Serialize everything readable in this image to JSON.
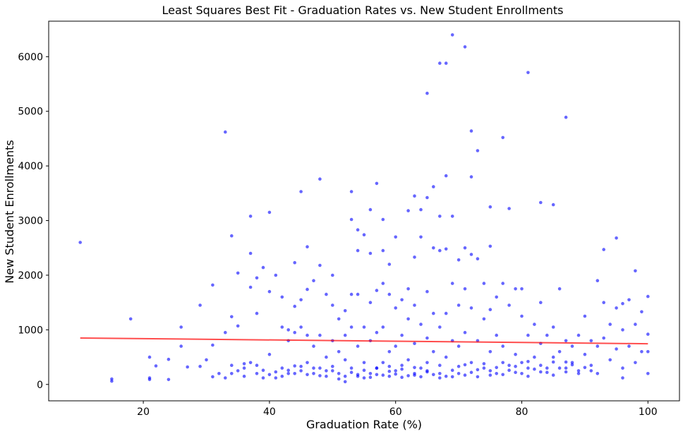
{
  "chart_data": {
    "type": "scatter",
    "title": "Least Squares Best Fit - Graduation Rates vs. New Student Enrollments",
    "xlabel": "Graduation Rate (%)",
    "ylabel": "New Student Enrollments",
    "xlim": [
      5,
      105
    ],
    "ylim": [
      -300,
      6650
    ],
    "xticks": [
      20,
      40,
      60,
      80,
      100
    ],
    "yticks": [
      0,
      1000,
      2000,
      3000,
      4000,
      5000,
      6000
    ],
    "grid": false,
    "legend": "none",
    "point_color": "#0000ff",
    "line_color": "#ff0000",
    "fit_line": {
      "x": [
        10,
        100
      ],
      "y": [
        850,
        745
      ]
    },
    "points": [
      [
        10,
        2600
      ],
      [
        15,
        100
      ],
      [
        15,
        60
      ],
      [
        18,
        1200
      ],
      [
        21,
        500
      ],
      [
        21,
        120
      ],
      [
        21,
        90
      ],
      [
        22,
        340
      ],
      [
        24,
        460
      ],
      [
        24,
        90
      ],
      [
        26,
        1050
      ],
      [
        26,
        700
      ],
      [
        27,
        320
      ],
      [
        29,
        1450
      ],
      [
        29,
        330
      ],
      [
        30,
        450
      ],
      [
        31,
        1820
      ],
      [
        31,
        720
      ],
      [
        31,
        140
      ],
      [
        32,
        200
      ],
      [
        33,
        4620
      ],
      [
        33,
        950
      ],
      [
        33,
        120
      ],
      [
        34,
        2720
      ],
      [
        34,
        1240
      ],
      [
        34,
        350
      ],
      [
        34,
        200
      ],
      [
        35,
        2040
      ],
      [
        35,
        1070
      ],
      [
        35,
        250
      ],
      [
        36,
        300
      ],
      [
        36,
        150
      ],
      [
        37,
        3080
      ],
      [
        37,
        2400
      ],
      [
        37,
        1780
      ],
      [
        37,
        400
      ],
      [
        38,
        1950
      ],
      [
        38,
        1300
      ],
      [
        38,
        350
      ],
      [
        38,
        200
      ],
      [
        39,
        2140
      ],
      [
        39,
        260
      ],
      [
        40,
        3150
      ],
      [
        40,
        1700
      ],
      [
        40,
        550
      ],
      [
        40,
        180
      ],
      [
        41,
        2000
      ],
      [
        41,
        120
      ],
      [
        42,
        1600
      ],
      [
        42,
        1050
      ],
      [
        42,
        300
      ],
      [
        43,
        1000
      ],
      [
        43,
        800
      ],
      [
        43,
        200
      ],
      [
        44,
        2230
      ],
      [
        44,
        1430
      ],
      [
        44,
        950
      ],
      [
        44,
        340
      ],
      [
        45,
        3530
      ],
      [
        45,
        1550
      ],
      [
        45,
        1050
      ],
      [
        45,
        250
      ],
      [
        46,
        2520
      ],
      [
        46,
        1740
      ],
      [
        46,
        900
      ],
      [
        46,
        400
      ],
      [
        47,
        1900
      ],
      [
        47,
        700
      ],
      [
        47,
        200
      ],
      [
        48,
        3760
      ],
      [
        48,
        2180
      ],
      [
        48,
        900
      ],
      [
        48,
        300
      ],
      [
        49,
        1650
      ],
      [
        49,
        500
      ],
      [
        49,
        150
      ],
      [
        50,
        2000
      ],
      [
        50,
        1450
      ],
      [
        50,
        800
      ],
      [
        50,
        250
      ],
      [
        51,
        1200
      ],
      [
        51,
        600
      ],
      [
        51,
        100
      ],
      [
        52,
        1350
      ],
      [
        52,
        900
      ],
      [
        52,
        450
      ],
      [
        52,
        50
      ],
      [
        53,
        3530
      ],
      [
        53,
        3020
      ],
      [
        53,
        1650
      ],
      [
        53,
        1050
      ],
      [
        53,
        300
      ],
      [
        54,
        2830
      ],
      [
        54,
        2450
      ],
      [
        54,
        1650
      ],
      [
        54,
        700
      ],
      [
        54,
        150
      ],
      [
        55,
        2740
      ],
      [
        55,
        1050
      ],
      [
        55,
        400
      ],
      [
        56,
        3200
      ],
      [
        56,
        2400
      ],
      [
        56,
        1500
      ],
      [
        56,
        800
      ],
      [
        56,
        200
      ],
      [
        57,
        3680
      ],
      [
        57,
        1720
      ],
      [
        57,
        950
      ],
      [
        57,
        300
      ],
      [
        58,
        3020
      ],
      [
        58,
        2450
      ],
      [
        58,
        1850
      ],
      [
        58,
        1050
      ],
      [
        58,
        400
      ],
      [
        59,
        2200
      ],
      [
        59,
        1650
      ],
      [
        59,
        600
      ],
      [
        59,
        150
      ],
      [
        60,
        2700
      ],
      [
        60,
        1400
      ],
      [
        60,
        700
      ],
      [
        60,
        250
      ],
      [
        61,
        1550
      ],
      [
        61,
        900
      ],
      [
        61,
        350
      ],
      [
        62,
        3180
      ],
      [
        62,
        1750
      ],
      [
        62,
        1200
      ],
      [
        62,
        450
      ],
      [
        63,
        3450
      ],
      [
        63,
        2330
      ],
      [
        63,
        1450
      ],
      [
        63,
        750
      ],
      [
        63,
        200
      ],
      [
        64,
        3200
      ],
      [
        64,
        2700
      ],
      [
        64,
        1100
      ],
      [
        64,
        300
      ],
      [
        65,
        5330
      ],
      [
        65,
        3420
      ],
      [
        65,
        1700
      ],
      [
        65,
        850
      ],
      [
        65,
        250
      ],
      [
        66,
        3620
      ],
      [
        66,
        2500
      ],
      [
        66,
        1300
      ],
      [
        66,
        600
      ],
      [
        67,
        5880
      ],
      [
        67,
        3080
      ],
      [
        67,
        2450
      ],
      [
        67,
        1050
      ],
      [
        67,
        200
      ],
      [
        68,
        5880
      ],
      [
        68,
        3820
      ],
      [
        68,
        2480
      ],
      [
        68,
        1300
      ],
      [
        68,
        500
      ],
      [
        69,
        6400
      ],
      [
        69,
        3080
      ],
      [
        69,
        1850
      ],
      [
        69,
        800
      ],
      [
        70,
        2280
      ],
      [
        70,
        1450
      ],
      [
        70,
        700
      ],
      [
        70,
        200
      ],
      [
        71,
        6180
      ],
      [
        71,
        2500
      ],
      [
        71,
        1750
      ],
      [
        71,
        950
      ],
      [
        72,
        4640
      ],
      [
        72,
        3800
      ],
      [
        72,
        2380
      ],
      [
        72,
        1400
      ],
      [
        72,
        400
      ],
      [
        73,
        4280
      ],
      [
        73,
        2300
      ],
      [
        73,
        800
      ],
      [
        74,
        1850
      ],
      [
        74,
        1200
      ],
      [
        74,
        300
      ],
      [
        75,
        3250
      ],
      [
        75,
        2530
      ],
      [
        75,
        1370
      ],
      [
        75,
        600
      ],
      [
        76,
        1600
      ],
      [
        76,
        900
      ],
      [
        76,
        200
      ],
      [
        77,
        4520
      ],
      [
        77,
        1850
      ],
      [
        77,
        700
      ],
      [
        78,
        3220
      ],
      [
        78,
        1450
      ],
      [
        78,
        350
      ],
      [
        79,
        1750
      ],
      [
        79,
        550
      ],
      [
        80,
        1750
      ],
      [
        80,
        1250
      ],
      [
        80,
        400
      ],
      [
        81,
        5710
      ],
      [
        81,
        900
      ],
      [
        81,
        300
      ],
      [
        82,
        1100
      ],
      [
        82,
        500
      ],
      [
        83,
        3330
      ],
      [
        83,
        1500
      ],
      [
        83,
        750
      ],
      [
        84,
        900
      ],
      [
        84,
        300
      ],
      [
        85,
        3290
      ],
      [
        85,
        1050
      ],
      [
        85,
        500
      ],
      [
        86,
        1750
      ],
      [
        86,
        600
      ],
      [
        87,
        4890
      ],
      [
        87,
        800
      ],
      [
        87,
        300
      ],
      [
        88,
        700
      ],
      [
        88,
        400
      ],
      [
        89,
        900
      ],
      [
        89,
        250
      ],
      [
        90,
        1250
      ],
      [
        90,
        550
      ],
      [
        91,
        800
      ],
      [
        91,
        350
      ],
      [
        92,
        1900
      ],
      [
        92,
        700
      ],
      [
        92,
        200
      ],
      [
        93,
        2470
      ],
      [
        93,
        1500
      ],
      [
        93,
        850
      ],
      [
        94,
        1100
      ],
      [
        94,
        450
      ],
      [
        95,
        2680
      ],
      [
        95,
        1400
      ],
      [
        95,
        650
      ],
      [
        96,
        1480
      ],
      [
        96,
        1000
      ],
      [
        96,
        300
      ],
      [
        96,
        120
      ],
      [
        97,
        1550
      ],
      [
        97,
        700
      ],
      [
        98,
        2080
      ],
      [
        98,
        1100
      ],
      [
        98,
        400
      ],
      [
        99,
        1330
      ],
      [
        99,
        600
      ],
      [
        100,
        1610
      ],
      [
        100,
        920
      ],
      [
        100,
        600
      ],
      [
        100,
        200
      ],
      [
        52,
        150
      ],
      [
        53,
        220
      ],
      [
        54,
        180
      ],
      [
        55,
        260
      ],
      [
        56,
        130
      ],
      [
        57,
        300
      ],
      [
        58,
        170
      ],
      [
        59,
        240
      ],
      [
        60,
        190
      ],
      [
        61,
        280
      ],
      [
        62,
        160
      ],
      [
        63,
        310
      ],
      [
        64,
        140
      ],
      [
        65,
        230
      ],
      [
        66,
        180
      ],
      [
        67,
        350
      ],
      [
        68,
        150
      ],
      [
        69,
        260
      ],
      [
        70,
        330
      ],
      [
        71,
        170
      ],
      [
        72,
        220
      ],
      [
        73,
        140
      ],
      [
        74,
        380
      ],
      [
        75,
        250
      ],
      [
        76,
        310
      ],
      [
        77,
        180
      ],
      [
        78,
        260
      ],
      [
        79,
        330
      ],
      [
        80,
        200
      ],
      [
        81,
        420
      ],
      [
        82,
        280
      ],
      [
        83,
        350
      ],
      [
        84,
        220
      ],
      [
        85,
        410
      ],
      [
        86,
        300
      ],
      [
        87,
        230
      ],
      [
        88,
        360
      ],
      [
        89,
        200
      ],
      [
        90,
        310
      ],
      [
        91,
        250
      ],
      [
        44,
        200
      ],
      [
        45,
        330
      ],
      [
        46,
        180
      ],
      [
        47,
        300
      ],
      [
        48,
        160
      ],
      [
        49,
        250
      ],
      [
        50,
        330
      ],
      [
        51,
        200
      ],
      [
        42,
        150
      ],
      [
        43,
        260
      ],
      [
        36,
        380
      ],
      [
        39,
        120
      ],
      [
        41,
        230
      ],
      [
        55,
        120
      ],
      [
        57,
        180
      ],
      [
        59,
        330
      ],
      [
        61,
        130
      ],
      [
        63,
        170
      ],
      [
        65,
        400
      ],
      [
        67,
        120
      ],
      [
        69,
        140
      ],
      [
        71,
        360
      ],
      [
        73,
        270
      ],
      [
        75,
        170
      ],
      [
        77,
        400
      ],
      [
        79,
        220
      ],
      [
        81,
        150
      ],
      [
        83,
        230
      ],
      [
        85,
        170
      ],
      [
        87,
        410
      ]
    ]
  }
}
